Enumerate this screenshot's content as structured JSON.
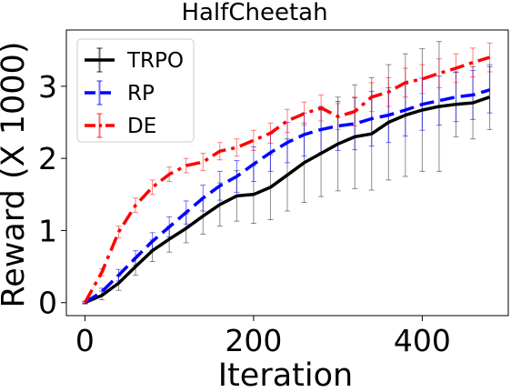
{
  "chart_data": {
    "type": "line",
    "title": "HalfCheetah",
    "xlabel": "Iteration",
    "ylabel": "Reward (X 1000)",
    "xlim": [
      -22,
      502
    ],
    "ylim": [
      -0.18,
      3.78
    ],
    "xticks": [
      0,
      200,
      400
    ],
    "yticks": [
      0,
      1,
      2,
      3
    ],
    "xtick_labels": [
      "0",
      "200",
      "400"
    ],
    "ytick_labels": [
      "0",
      "1",
      "2",
      "3"
    ],
    "grid": false,
    "legend_position": "top-left",
    "x": [
      0,
      20,
      40,
      60,
      80,
      100,
      120,
      140,
      160,
      180,
      200,
      220,
      240,
      260,
      280,
      300,
      320,
      340,
      360,
      380,
      400,
      420,
      440,
      460,
      480
    ],
    "series": [
      {
        "name": "TRPO",
        "color": "#000000",
        "dash": "solid",
        "values": [
          0.0,
          0.1,
          0.27,
          0.5,
          0.72,
          0.88,
          1.03,
          1.2,
          1.36,
          1.48,
          1.5,
          1.6,
          1.77,
          1.94,
          2.07,
          2.2,
          2.3,
          2.34,
          2.5,
          2.6,
          2.67,
          2.72,
          2.75,
          2.77,
          2.85
        ],
        "errors": [
          0.02,
          0.06,
          0.1,
          0.12,
          0.15,
          0.18,
          0.2,
          0.25,
          0.3,
          0.35,
          0.4,
          0.45,
          0.5,
          0.55,
          0.6,
          0.65,
          0.72,
          0.78,
          0.8,
          0.85,
          0.85,
          0.9,
          0.45,
          0.5,
          0.45
        ]
      },
      {
        "name": "RP",
        "color": "#0000ff",
        "dash": "dashed",
        "values": [
          0.0,
          0.15,
          0.38,
          0.62,
          0.85,
          1.05,
          1.25,
          1.45,
          1.62,
          1.75,
          1.92,
          2.08,
          2.22,
          2.33,
          2.4,
          2.45,
          2.48,
          2.55,
          2.6,
          2.67,
          2.75,
          2.8,
          2.85,
          2.88,
          2.95
        ],
        "errors": [
          0.01,
          0.05,
          0.08,
          0.1,
          0.12,
          0.14,
          0.16,
          0.18,
          0.2,
          0.22,
          0.24,
          0.26,
          0.28,
          0.3,
          0.32,
          0.34,
          0.36,
          0.38,
          0.38,
          0.36,
          0.36,
          0.34,
          0.34,
          0.34,
          0.32
        ]
      },
      {
        "name": "DE",
        "color": "#ff0000",
        "dash": "dashdot",
        "values": [
          0.0,
          0.42,
          0.98,
          1.35,
          1.6,
          1.78,
          1.9,
          1.95,
          2.1,
          2.15,
          2.25,
          2.35,
          2.52,
          2.62,
          2.7,
          2.58,
          2.65,
          2.85,
          2.92,
          3.05,
          3.1,
          3.18,
          3.25,
          3.33,
          3.4
        ],
        "errors": [
          0.01,
          0.05,
          0.08,
          0.1,
          0.1,
          0.1,
          0.1,
          0.12,
          0.12,
          0.12,
          0.14,
          0.14,
          0.16,
          0.16,
          0.18,
          0.18,
          0.2,
          0.2,
          0.2,
          0.2,
          0.2,
          0.2,
          0.2,
          0.2,
          0.2
        ]
      }
    ]
  }
}
